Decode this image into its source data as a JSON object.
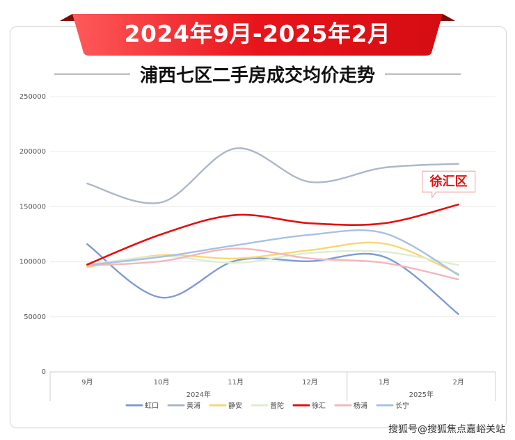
{
  "banner": "2024年9月-2025年2月",
  "title": "浦西七区二手房成交均价走势",
  "watermark": "搜狐号@搜狐焦点嘉峪关站",
  "chart_data": {
    "type": "line",
    "categories": [
      "9月",
      "10月",
      "11月",
      "12月",
      "1月",
      "2月"
    ],
    "year_groups": [
      {
        "label": "2024年",
        "start": 0,
        "end": 3
      },
      {
        "label": "2025年",
        "start": 4,
        "end": 5
      }
    ],
    "ylim": [
      0,
      250000
    ],
    "yticks": [
      0,
      50000,
      100000,
      150000,
      200000,
      250000
    ],
    "grid": true,
    "legend": "bottom",
    "series": [
      {
        "name": "虹口",
        "color": "#7f9bd1",
        "values": [
          116000,
          67500,
          101000,
          100500,
          104500,
          52500
        ]
      },
      {
        "name": "黄浦",
        "color": "#adb7c9",
        "values": [
          171000,
          154000,
          203000,
          172500,
          185500,
          189000
        ]
      },
      {
        "name": "静安",
        "color": "#f7d675",
        "values": [
          95000,
          106000,
          103000,
          110500,
          116500,
          89000
        ]
      },
      {
        "name": "普陀",
        "color": "#dceed0",
        "values": [
          97000,
          105000,
          99000,
          108000,
          109000,
          97000
        ]
      },
      {
        "name": "徐汇",
        "color": "#e31010",
        "values": [
          97500,
          125000,
          142500,
          135000,
          135000,
          152000
        ]
      },
      {
        "name": "杨浦",
        "color": "#f2b6bd",
        "values": [
          96500,
          100500,
          112000,
          103000,
          99000,
          84000
        ]
      },
      {
        "name": "长宁",
        "color": "#a9c0e4",
        "values": [
          97000,
          104500,
          115000,
          124500,
          126000,
          88000
        ]
      }
    ],
    "annotation": {
      "text": "徐汇区",
      "series": "徐汇",
      "index": 5
    }
  }
}
